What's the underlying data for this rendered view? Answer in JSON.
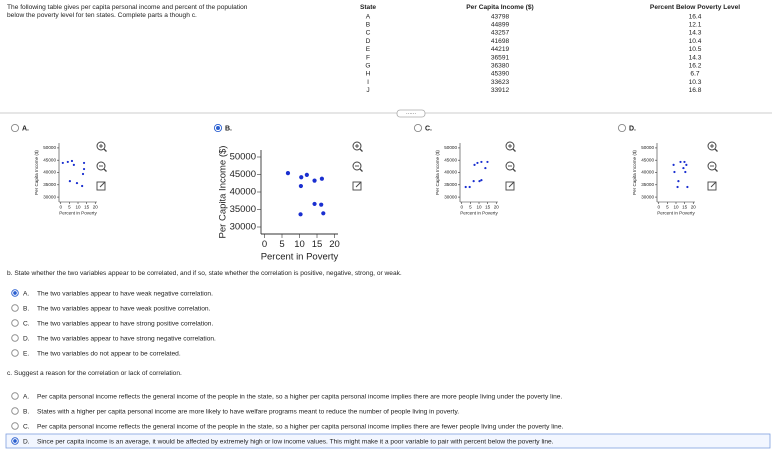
{
  "intro": "The following table gives per capita personal income and percent of the population below the poverty level for ten states. Complete parts a though c.",
  "table": {
    "headers": [
      "State",
      "Per Capita Income ($)",
      "Percent Below Poverty Level"
    ],
    "rows": [
      [
        "A",
        43798,
        16.4
      ],
      [
        "B",
        44899,
        12.1
      ],
      [
        "C",
        43257,
        14.3
      ],
      [
        "D",
        41698,
        10.4
      ],
      [
        "E",
        44219,
        10.5
      ],
      [
        "F",
        36591,
        14.3
      ],
      [
        "G",
        36380,
        16.2
      ],
      [
        "H",
        45390,
        6.7
      ],
      [
        "I",
        33623,
        10.3
      ],
      [
        "J",
        33912,
        16.8
      ]
    ]
  },
  "part_a": {
    "options": [
      {
        "label": "A.",
        "selected": false,
        "chart": {
          "type": "scatter",
          "xlabel": "Percent in Poverty",
          "ylabel": "Per Capita Income ($)",
          "x": [
            1.2,
            4.1,
            6.5,
            7.6,
            13.5,
            13.5,
            12.9,
            5.3,
            9.4,
            12.4
          ],
          "y": [
            43900,
            44300,
            44700,
            43100,
            43900,
            41400,
            39400,
            36500,
            35700,
            34500
          ],
          "xlim": [
            -1,
            21
          ],
          "ylim": [
            28000,
            52000
          ],
          "xticks": [
            0,
            5,
            10,
            15,
            20
          ],
          "yticks": [
            30000,
            35000,
            40000,
            45000,
            50000
          ],
          "color": "#1a2fd0"
        }
      },
      {
        "label": "B.",
        "selected": true,
        "chart": {
          "type": "scatter",
          "xlabel": "Percent in Poverty",
          "ylabel": "Per Capita Income ($)",
          "x": [
            16.4,
            12.1,
            14.3,
            10.4,
            10.5,
            14.3,
            16.2,
            6.7,
            10.3,
            16.8
          ],
          "y": [
            43798,
            44899,
            43257,
            41698,
            44219,
            36591,
            36380,
            45390,
            33623,
            33912
          ],
          "xlim": [
            -1,
            21
          ],
          "ylim": [
            28000,
            52000
          ],
          "xticks": [
            0,
            5,
            10,
            15,
            20
          ],
          "yticks": [
            30000,
            35000,
            40000,
            45000,
            50000
          ],
          "color": "#1a2fd0"
        }
      },
      {
        "label": "C.",
        "selected": false,
        "chart": {
          "type": "scatter",
          "xlabel": "Percent in Poverty",
          "ylabel": "Per Capita Income ($)",
          "x": [
            2.3,
            4.6,
            6.9,
            9.1,
            11.4,
            14.9,
            13.7,
            11.4,
            7.4,
            10.3
          ],
          "y": [
            34100,
            34100,
            36500,
            43900,
            44300,
            44300,
            41800,
            36900,
            43100,
            36500
          ],
          "xlim": [
            -1,
            21
          ],
          "ylim": [
            28000,
            52000
          ],
          "xticks": [
            0,
            5,
            10,
            15,
            20
          ],
          "yticks": [
            30000,
            35000,
            40000,
            45000,
            50000
          ],
          "color": "#1a2fd0"
        }
      },
      {
        "label": "D.",
        "selected": false,
        "chart": {
          "type": "scatter",
          "xlabel": "Percent in Poverty",
          "ylabel": "Per Capita Income ($)",
          "x": [
            8.6,
            9.1,
            12.6,
            14.9,
            16,
            14.3,
            11.4,
            10.9,
            16.6,
            15.4
          ],
          "y": [
            43100,
            40200,
            44300,
            44300,
            43100,
            41800,
            36500,
            34100,
            34100,
            40200
          ],
          "xlim": [
            -1,
            21
          ],
          "ylim": [
            28000,
            52000
          ],
          "xticks": [
            0,
            5,
            10,
            15,
            20
          ],
          "yticks": [
            30000,
            35000,
            40000,
            45000,
            50000
          ],
          "color": "#1a2fd0"
        }
      }
    ]
  },
  "part_b": {
    "question": "b. State whether the two variables appear to be correlated, and if so, state whether the correlation is positive, negative, strong, or weak.",
    "options": [
      {
        "label": "A.",
        "text": "The two variables appear to have weak negative correlation.",
        "selected": true
      },
      {
        "label": "B.",
        "text": "The two variables appear to have weak positive correlation.",
        "selected": false
      },
      {
        "label": "C.",
        "text": "The two variables appear to have strong positive correlation.",
        "selected": false
      },
      {
        "label": "D.",
        "text": "The two variables appear to have strong negative correlation.",
        "selected": false
      },
      {
        "label": "E.",
        "text": "The two variables do not appear to be correlated.",
        "selected": false
      }
    ]
  },
  "part_c": {
    "question": "c. Suggest a reason for the correlation or lack of correlation.",
    "options": [
      {
        "label": "A.",
        "text": "Per capita personal income reflects the general income of the people in the state, so a higher per capita personal income implies there are more people living under the poverty line.",
        "selected": false
      },
      {
        "label": "B.",
        "text": "States with a higher per capita personal income are more likely to have welfare programs meant to reduce the number of people living in poverty.",
        "selected": false
      },
      {
        "label": "C.",
        "text": "Per capita personal income reflects the general income of the people in the state, so a higher per capita personal income implies there are fewer people living under the poverty line.",
        "selected": false
      },
      {
        "label": "D.",
        "text": "Since per capita income is an average, it would be affected by extremely high or low income values. This might make it a poor variable to pair with percent below the poverty line.",
        "selected": true
      }
    ]
  }
}
